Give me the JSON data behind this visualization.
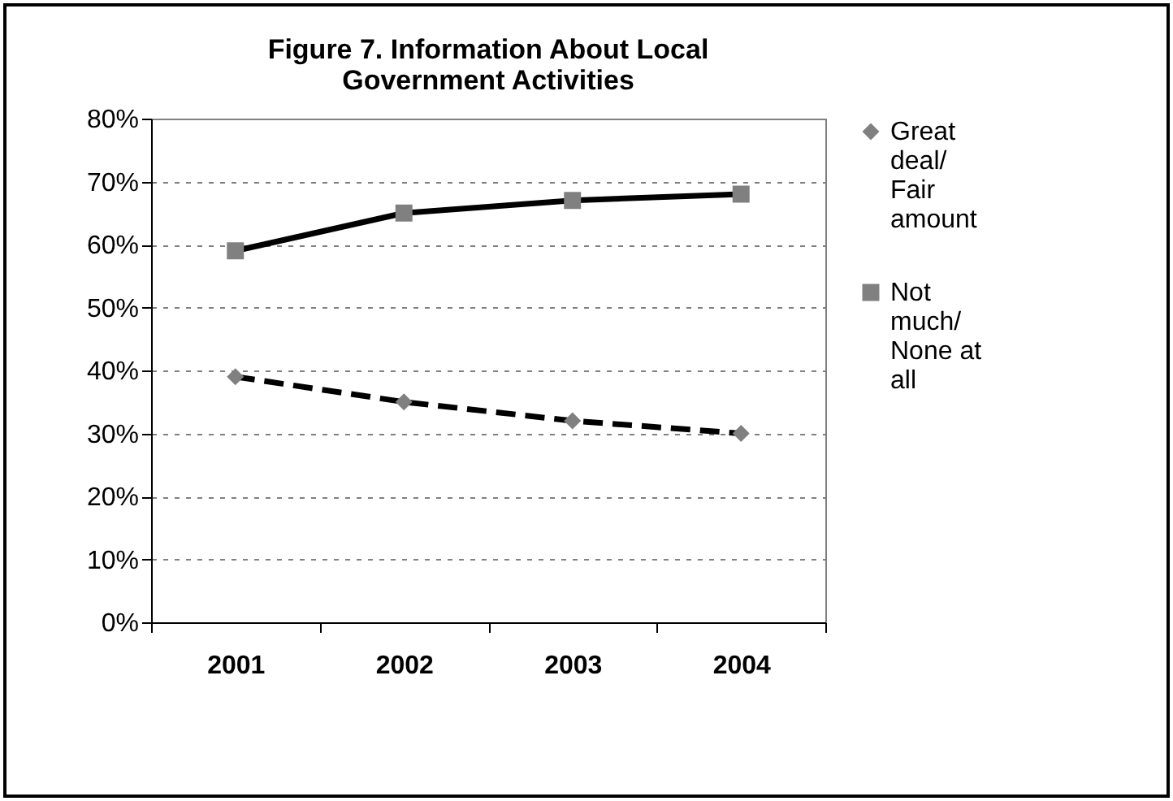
{
  "chart_data": {
    "type": "line",
    "title": "Figure 7. Information About Local Government Activities",
    "categories": [
      "2001",
      "2002",
      "2003",
      "2004"
    ],
    "series": [
      {
        "name": "Great deal/ Fair amount",
        "color": "#000000",
        "values": [
          39,
          35,
          32,
          30
        ],
        "marker": "diamond",
        "line_style": "dashed"
      },
      {
        "name": "Not much/ None at all",
        "color": "#000000",
        "values": [
          59,
          65,
          67,
          68
        ],
        "marker": "square",
        "line_style": "solid"
      }
    ],
    "ylim": [
      0,
      80
    ],
    "yticks": [
      {
        "value": 0,
        "label": "0%"
      },
      {
        "value": 10,
        "label": "10%"
      },
      {
        "value": 20,
        "label": "20%"
      },
      {
        "value": 30,
        "label": "30%"
      },
      {
        "value": 40,
        "label": "40%"
      },
      {
        "value": 50,
        "label": "50%"
      },
      {
        "value": 60,
        "label": "60%"
      },
      {
        "value": 70,
        "label": "70%"
      },
      {
        "value": 80,
        "label": "80%"
      }
    ],
    "grid": "y",
    "legend": "right"
  }
}
